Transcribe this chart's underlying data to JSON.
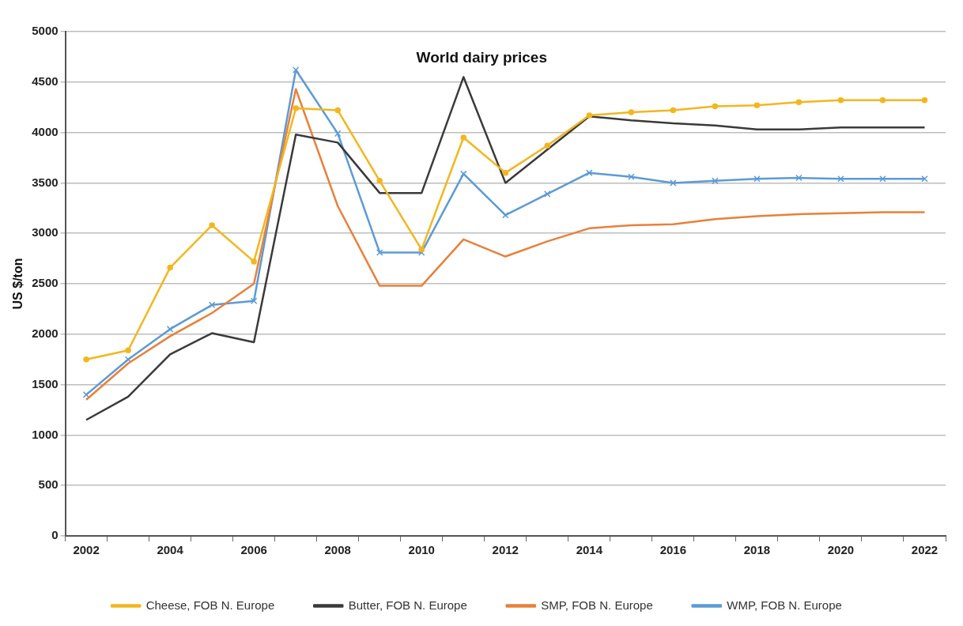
{
  "chart_data": {
    "type": "line",
    "title": "World dairy prices",
    "ylabel": "US $/ton",
    "categories": [
      "2002",
      null,
      "2004",
      null,
      "2006",
      null,
      "2008",
      null,
      "2010",
      null,
      "2012",
      null,
      "2014",
      null,
      "2016",
      null,
      "2018",
      null,
      "2020",
      null,
      "2022"
    ],
    "series": [
      {
        "name": "Cheese, FOB N. Europe",
        "color": "#f2b71f",
        "marker": "circle",
        "values": [
          1750,
          1840,
          2660,
          3080,
          2720,
          4240,
          4220,
          3520,
          2840,
          3950,
          3600,
          3870,
          4170,
          4200,
          4220,
          4260,
          4270,
          4300,
          4320,
          4320,
          4320
        ]
      },
      {
        "name": "Butter, FOB N. Europe",
        "color": "#3a3a3a",
        "marker": "none",
        "values": [
          1150,
          1380,
          1800,
          2010,
          1920,
          3980,
          3900,
          3400,
          3400,
          4550,
          3500,
          3830,
          4160,
          4120,
          4090,
          4070,
          4030,
          4030,
          4050,
          4050,
          4050
        ]
      },
      {
        "name": "SMP, FOB N. Europe",
        "color": "#e8803a",
        "marker": "none",
        "values": [
          1350,
          1710,
          1980,
          2210,
          2500,
          4430,
          3270,
          2480,
          2480,
          2940,
          2770,
          2920,
          3050,
          3080,
          3090,
          3140,
          3170,
          3190,
          3200,
          3210,
          3210
        ]
      },
      {
        "name": "WMP, FOB N. Europe",
        "color": "#5b9bd5",
        "marker": "cross",
        "values": [
          1400,
          1750,
          2050,
          2290,
          2330,
          4620,
          3990,
          2810,
          2810,
          3590,
          3180,
          3390,
          3600,
          3560,
          3500,
          3520,
          3540,
          3550,
          3540,
          3540,
          3540
        ]
      }
    ],
    "ylim": [
      0,
      5000
    ],
    "yticks": [
      0,
      500,
      1000,
      1500,
      2000,
      2500,
      3000,
      3500,
      4000,
      4500,
      5000
    ],
    "grid": "y",
    "legend": "bottom",
    "line_style": "solid"
  }
}
